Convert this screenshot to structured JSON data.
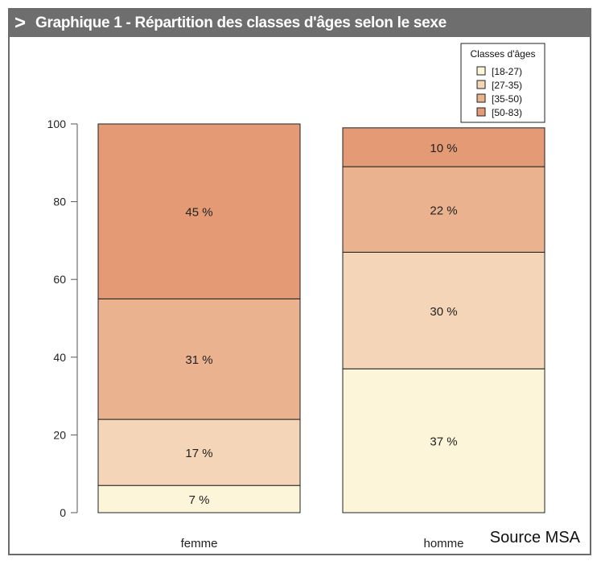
{
  "header": {
    "arrow": ">",
    "title": "Graphique 1 - Répartition des classes d'âges selon le sexe"
  },
  "source": "Source MSA",
  "chart_data": {
    "type": "bar",
    "stacked": true,
    "categories": [
      "femme",
      "homme"
    ],
    "series": [
      {
        "name": "[18-27)",
        "values": [
          7,
          37
        ],
        "labels": [
          "7 %",
          "37 %"
        ],
        "color": "#fdf5d9"
      },
      {
        "name": "[27-35)",
        "values": [
          17,
          30
        ],
        "labels": [
          "17 %",
          "30 %"
        ],
        "color": "#f4d5b7"
      },
      {
        "name": "[35-50)",
        "values": [
          31,
          22
        ],
        "labels": [
          "31 %",
          "22 %"
        ],
        "color": "#ebb28f"
      },
      {
        "name": "[50-83)",
        "values": [
          45,
          10
        ],
        "labels": [
          "45 %",
          "10 %"
        ],
        "color": "#e49a74"
      }
    ],
    "ylim": [
      0,
      100
    ],
    "yticks": [
      0,
      20,
      40,
      60,
      80,
      100
    ],
    "legend": {
      "title": "Classes d'âges",
      "position": "top-right"
    },
    "xlabel": "",
    "ylabel": ""
  }
}
